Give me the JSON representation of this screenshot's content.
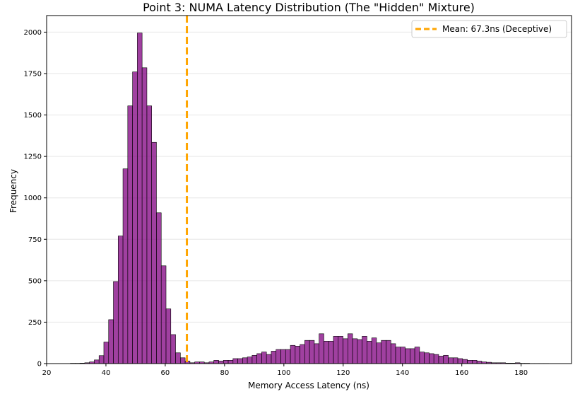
{
  "chart_data": {
    "type": "histogram",
    "title": "Point 3: NUMA Latency Distribution (The \"Hidden\" Mixture)",
    "xlabel": "Memory Access Latency (ns)",
    "ylabel": "Frequency",
    "xlim": [
      20,
      197
    ],
    "ylim": [
      0,
      2100
    ],
    "xticks": [
      20,
      40,
      60,
      80,
      100,
      120,
      140,
      160,
      180
    ],
    "yticks": [
      0,
      250,
      500,
      750,
      1000,
      1250,
      1500,
      1750,
      2000
    ],
    "grid": "horizontal",
    "legend_position": "upper right",
    "bar_color": "#800080",
    "bar_edge_color": "#000000",
    "mean_line": {
      "x": 67.3,
      "label": "Mean: 67.3ns (Deceptive)",
      "color": "#ffa500",
      "style": "dashed"
    },
    "bins": {
      "start": 28.0,
      "width": 1.613,
      "counts": [
        2,
        2,
        3,
        5,
        10,
        22,
        48,
        130,
        265,
        495,
        770,
        1175,
        1555,
        1760,
        1995,
        1785,
        1555,
        1335,
        910,
        590,
        330,
        175,
        65,
        35,
        15,
        5,
        10,
        10,
        5,
        10,
        20,
        15,
        20,
        20,
        30,
        30,
        35,
        40,
        50,
        60,
        70,
        55,
        75,
        85,
        85,
        85,
        110,
        105,
        115,
        140,
        140,
        120,
        180,
        135,
        135,
        165,
        165,
        150,
        180,
        150,
        145,
        165,
        135,
        155,
        125,
        140,
        140,
        120,
        100,
        100,
        90,
        90,
        100,
        70,
        65,
        60,
        55,
        45,
        50,
        35,
        35,
        30,
        25,
        20,
        20,
        15,
        10,
        8,
        5,
        5,
        5,
        3,
        3,
        5,
        2,
        2,
        1,
        1,
        1,
        1
      ]
    }
  }
}
